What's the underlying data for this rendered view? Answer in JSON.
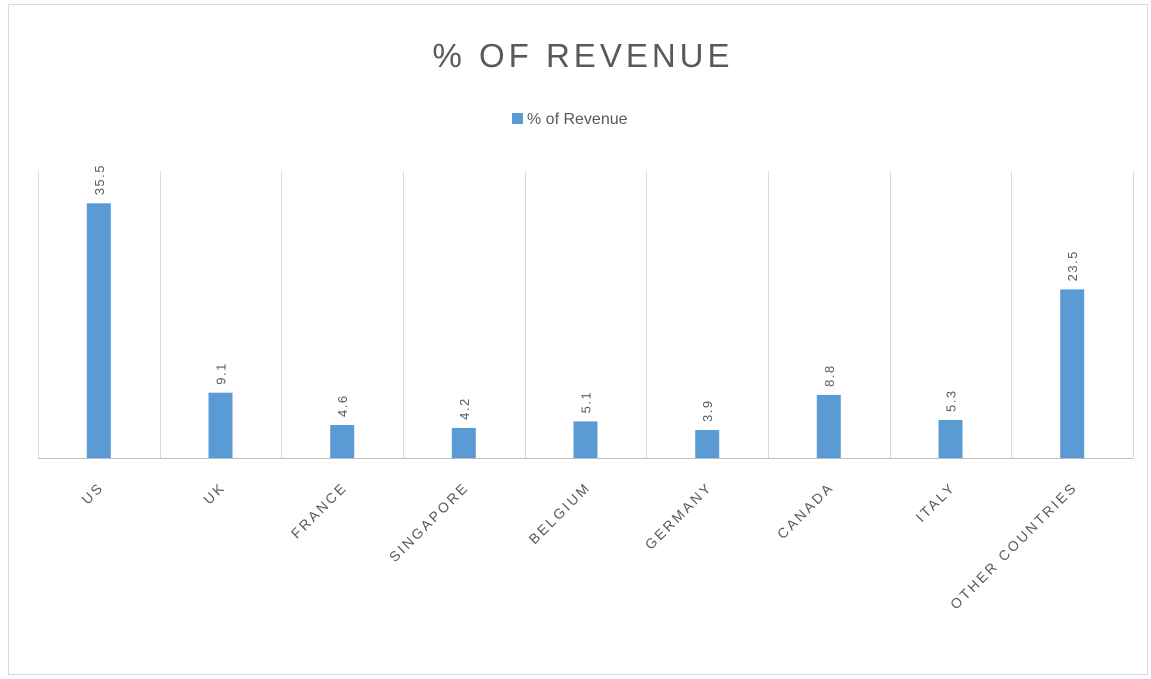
{
  "chart_data": {
    "type": "bar",
    "title": "% OF REVENUE",
    "categories": [
      "US",
      "UK",
      "FRANCE",
      "SINGAPORE",
      "BELGIUM",
      "GERMANY",
      "CANADA",
      "ITALY",
      "OTHER COUNTRIES"
    ],
    "series": [
      {
        "name": "% of Revenue",
        "values": [
          35.5,
          9.1,
          4.6,
          4.2,
          5.1,
          3.9,
          8.8,
          5.3,
          23.5
        ],
        "color": "#5b9bd5"
      }
    ],
    "data_labels": [
      "35.5",
      "9.1",
      "4.6",
      "4.2",
      "5.1",
      "3.9",
      "8.8",
      "5.3",
      "23.5"
    ],
    "ylim": [
      0,
      40
    ],
    "xlabel": "",
    "ylabel": "",
    "grid": "vertical-category-separators",
    "legend_position": "top-center",
    "legend_label": "% of Revenue",
    "tick_label_rotation": "-45deg",
    "data_label_rotation": "-90deg"
  }
}
